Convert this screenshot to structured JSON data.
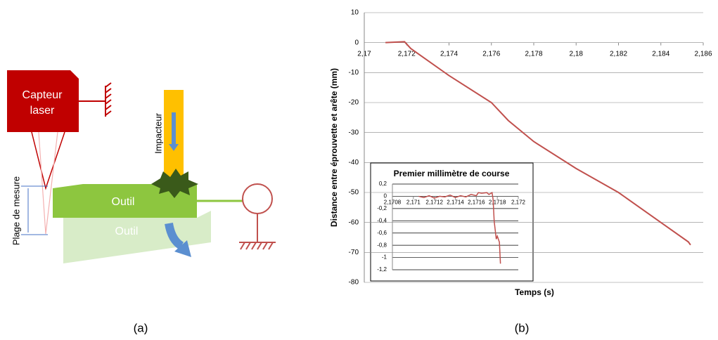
{
  "diagram": {
    "sensor_label": [
      "Capteur",
      "laser"
    ],
    "impactor_label": "Impacteur",
    "range_label": "Plage de mesure",
    "tool_label": "Outil",
    "tool_moved_label": "Outil"
  },
  "captions": [
    "(a)",
    "(b)"
  ],
  "chart_data": [
    {
      "type": "line",
      "y_label": "Distance entre éprouvette et arête (mm)",
      "x_label": "Temps (s)",
      "xlim": [
        2.17,
        2.186
      ],
      "xticks": [
        {
          "value": 2.17,
          "label": "2,17"
        },
        {
          "value": 2.172,
          "label": "2,172"
        },
        {
          "value": 2.174,
          "label": "2,174"
        },
        {
          "value": 2.176,
          "label": "2,176"
        },
        {
          "value": 2.178,
          "label": "2,178"
        },
        {
          "value": 2.18,
          "label": "2,18"
        },
        {
          "value": 2.182,
          "label": "2,182"
        },
        {
          "value": 2.184,
          "label": "2,184"
        },
        {
          "value": 2.186,
          "label": "2,186"
        }
      ],
      "ylim": [
        -80,
        10
      ],
      "yticks": [
        -80,
        -70,
        -60,
        -50,
        -40,
        -30,
        -20,
        -10,
        0,
        10
      ],
      "grid": true,
      "series": [
        {
          "color": "#c0504d",
          "x": [
            2.171,
            2.1719,
            2.1722,
            2.174,
            2.176,
            2.1768,
            2.178,
            2.18,
            2.182,
            2.184,
            2.1853,
            2.1854
          ],
          "values": [
            0,
            0.3,
            -2,
            -11,
            -20,
            -26,
            -33,
            -42,
            -50,
            -60,
            -66.5,
            -67.5
          ]
        }
      ]
    },
    {
      "type": "line",
      "title": "Premier millimètre de course",
      "xlim": [
        2.1708,
        2.172
      ],
      "xticks": [
        {
          "value": 2.1708,
          "label": "2,1708"
        },
        {
          "value": 2.171,
          "label": "2,171"
        },
        {
          "value": 2.1712,
          "label": "2,1712"
        },
        {
          "value": 2.1714,
          "label": "2,1714"
        },
        {
          "value": 2.1716,
          "label": "2,1716"
        },
        {
          "value": 2.1718,
          "label": "2,1718"
        },
        {
          "value": 2.172,
          "label": "2,172"
        }
      ],
      "ylim": [
        -1.2,
        0.2
      ],
      "yticks": [
        {
          "value": -1.2,
          "label": "-1,2"
        },
        {
          "value": -1,
          "label": "-1"
        },
        {
          "value": -0.8,
          "label": "-0,8"
        },
        {
          "value": -0.6,
          "label": "-0,6"
        },
        {
          "value": -0.4,
          "label": "-0,4"
        },
        {
          "value": -0.2,
          "label": "-0,2"
        },
        0,
        {
          "value": 0.2,
          "label": "0,2"
        }
      ],
      "grid": true,
      "series": [
        {
          "color": "#c0504d",
          "x": [
            2.17105,
            2.1711,
            2.17115,
            2.1712,
            2.17125,
            2.1713,
            2.17135,
            2.1714,
            2.17145,
            2.1715,
            2.17155,
            2.1716,
            2.17162,
            2.17165,
            2.1717,
            2.17172,
            2.17175,
            2.17176,
            2.17177,
            2.17179,
            2.1718,
            2.17182,
            2.17183
          ],
          "values": [
            0,
            -0.02,
            0.01,
            -0.03,
            0,
            -0.01,
            0.02,
            -0.02,
            0.01,
            -0.01,
            0.03,
            0.01,
            0.06,
            0.05,
            0.06,
            0.03,
            0.06,
            -0.05,
            -0.4,
            -0.7,
            -0.65,
            -0.75,
            -1.1
          ]
        }
      ]
    }
  ]
}
